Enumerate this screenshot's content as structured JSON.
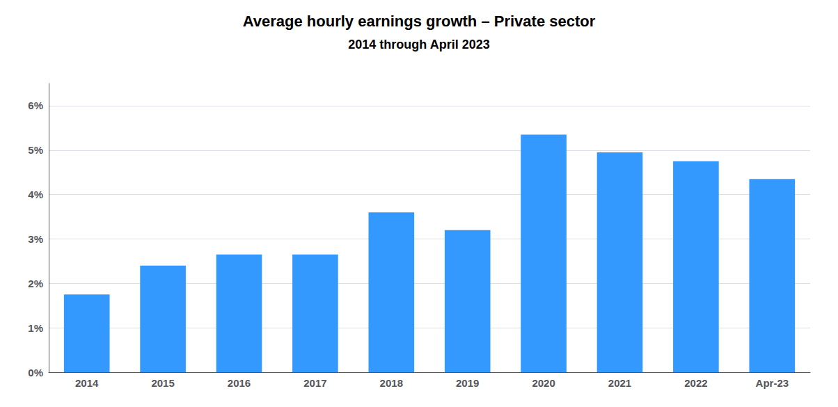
{
  "chart_data": {
    "type": "bar",
    "title": "Average hourly earnings growth – Private sector",
    "subtitle": "2014 through April 2023",
    "categories": [
      "2014",
      "2015",
      "2016",
      "2017",
      "2018",
      "2019",
      "2020",
      "2021",
      "2022",
      "Apr-23"
    ],
    "values": [
      1.75,
      2.4,
      2.65,
      2.65,
      3.6,
      3.2,
      5.35,
      4.95,
      4.75,
      4.35
    ],
    "color": "#3399FF",
    "ylim": [
      0,
      6.5
    ],
    "yticks": [
      {
        "value": 0,
        "label": "0%"
      },
      {
        "value": 1,
        "label": "1%"
      },
      {
        "value": 2,
        "label": "2%"
      },
      {
        "value": 3,
        "label": "3%"
      },
      {
        "value": 4,
        "label": "4%"
      },
      {
        "value": 5,
        "label": "5%"
      },
      {
        "value": 6,
        "label": "6%"
      }
    ],
    "grid": true
  }
}
